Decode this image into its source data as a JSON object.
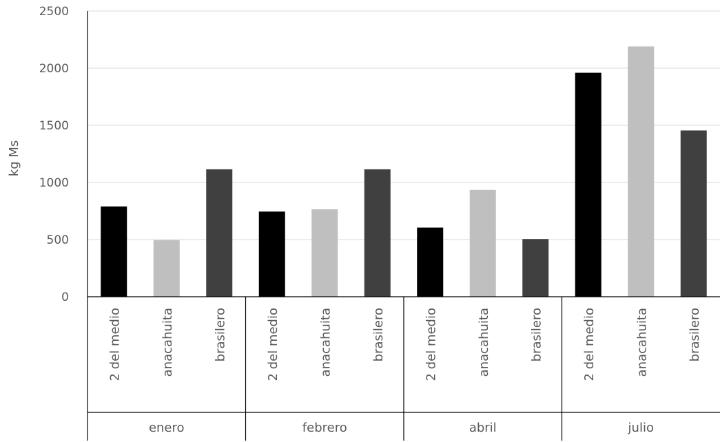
{
  "chart_data": {
    "type": "bar",
    "ylabel": "kg Ms",
    "ylim": [
      0,
      2500
    ],
    "yticks": [
      0,
      500,
      1000,
      1500,
      2000,
      2500
    ],
    "grid": true,
    "groups": [
      {
        "label": "enero",
        "categories": [
          "2 del medio",
          "anacahuita",
          "brasilero"
        ],
        "values": [
          790,
          495,
          1115
        ]
      },
      {
        "label": "febrero",
        "categories": [
          "2 del medio",
          "anacahuita",
          "brasilero"
        ],
        "values": [
          745,
          765,
          1115
        ]
      },
      {
        "label": "abril",
        "categories": [
          "2 del medio",
          "anacahuita",
          "brasilero"
        ],
        "values": [
          605,
          935,
          505
        ]
      },
      {
        "label": "julio",
        "categories": [
          "2 del medio",
          "anacahuita",
          "brasilero"
        ],
        "values": [
          1960,
          2190,
          1455
        ]
      }
    ],
    "colors": {
      "2 del medio": "#000000",
      "anacahuita": "#bfbfbf",
      "brasilero": "#404040"
    }
  }
}
